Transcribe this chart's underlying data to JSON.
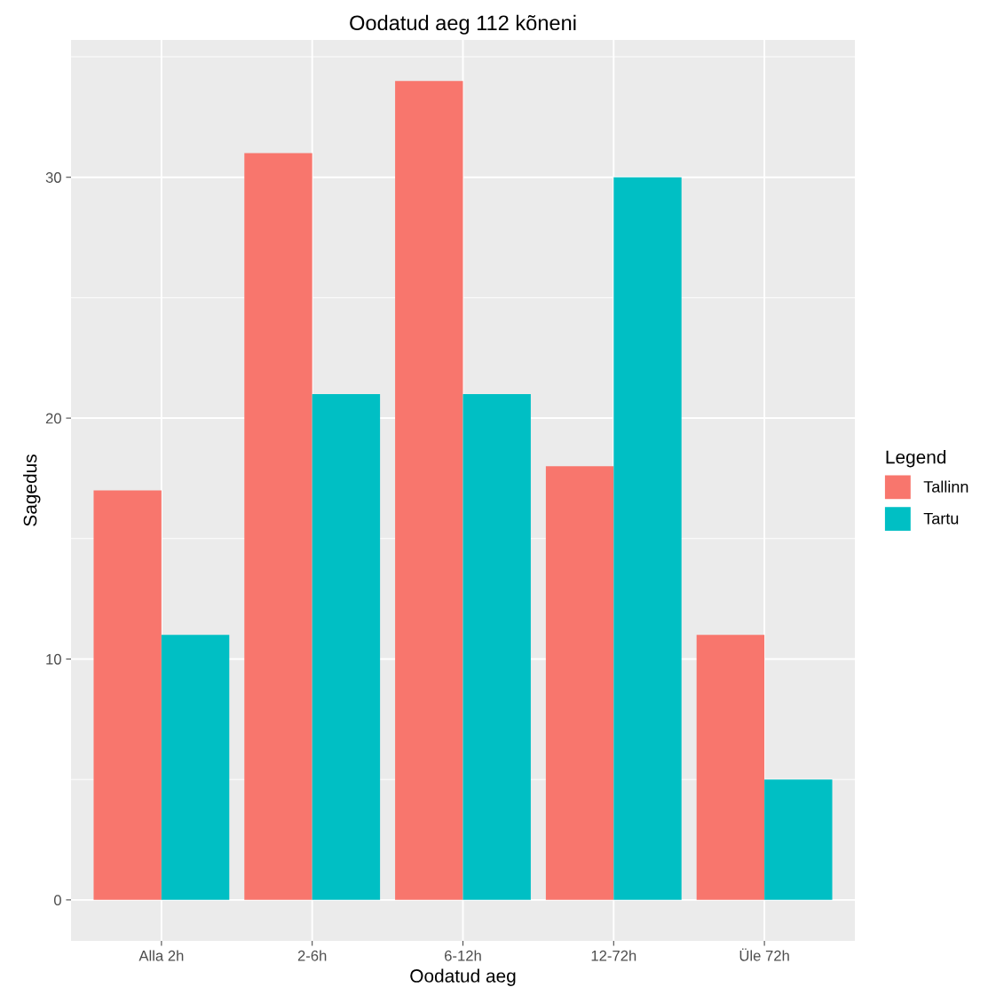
{
  "chart_data": {
    "type": "bar",
    "title": "Oodatud aeg 112 kõneni",
    "xlabel": "Oodatud aeg",
    "ylabel": "Sagedus",
    "categories": [
      "Alla 2h",
      "2-6h",
      "6-12h",
      "12-72h",
      "Üle 72h"
    ],
    "series": [
      {
        "name": "Tallinn",
        "color": "#f8766d",
        "values": [
          17,
          31,
          34,
          18,
          11
        ]
      },
      {
        "name": "Tartu",
        "color": "#00bfc4",
        "values": [
          11,
          21,
          21,
          30,
          5
        ]
      }
    ],
    "legend_title": "Legend",
    "legend": "right",
    "ylim": [
      -1.7,
      35.7
    ],
    "yticks": [
      0,
      10,
      20,
      30
    ],
    "grid": true
  }
}
